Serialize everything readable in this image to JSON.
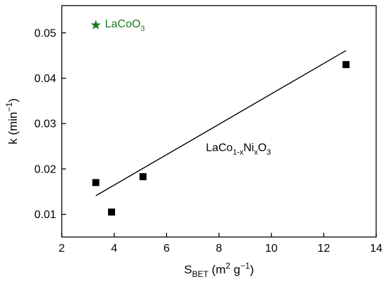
{
  "chart_data": {
    "type": "scatter",
    "xaxis": {
      "label_main": "S",
      "label_sub": "BET",
      "label_rest_a": " (m",
      "label_sup": "2",
      "label_rest_b": " g",
      "label_sup2": "−1",
      "label_rest_c": ")",
      "range": [
        2,
        14
      ],
      "ticks": [
        2,
        4,
        6,
        8,
        10,
        12,
        14
      ]
    },
    "yaxis": {
      "label_main": "k (min",
      "label_sup": "−1",
      "label_rest": ")",
      "range": [
        0.005,
        0.056
      ],
      "ticks": [
        0.01,
        0.02,
        0.03,
        0.04,
        0.05
      ],
      "tick_labels": [
        "0.01",
        "0.02",
        "0.03",
        "0.04",
        "0.05"
      ]
    },
    "series": [
      {
        "marker": "square",
        "color": "#000000",
        "points": [
          {
            "x": 3.3,
            "y": 0.017
          },
          {
            "x": 3.9,
            "y": 0.0105
          },
          {
            "x": 5.1,
            "y": 0.0183
          },
          {
            "x": 12.85,
            "y": 0.043
          }
        ]
      },
      {
        "marker": "star",
        "color": "#1a7a1a",
        "points": [
          {
            "x": 3.3,
            "y": 0.0517
          }
        ]
      }
    ],
    "fit_line": {
      "color": "#000000",
      "points": [
        {
          "x": 3.3,
          "y": 0.0141
        },
        {
          "x": 12.85,
          "y": 0.0461
        }
      ]
    },
    "annotations": [
      {
        "id": "lacoo3",
        "color": "#1a7a1a",
        "parts": [
          {
            "text": "LaCoO",
            "style": "normal"
          },
          {
            "text": "3",
            "style": "sub"
          }
        ],
        "anchor": {
          "x": 3.65,
          "y": 0.0512
        }
      },
      {
        "id": "laconi",
        "color": "#000000",
        "parts": [
          {
            "text": "LaCo",
            "style": "normal"
          },
          {
            "text": "1-x",
            "style": "sub"
          },
          {
            "text": "Ni",
            "style": "normal"
          },
          {
            "text": "x",
            "style": "sub"
          },
          {
            "text": "O",
            "style": "normal"
          },
          {
            "text": "3",
            "style": "sub"
          }
        ],
        "anchor": {
          "x": 7.5,
          "y": 0.0239
        }
      }
    ]
  }
}
